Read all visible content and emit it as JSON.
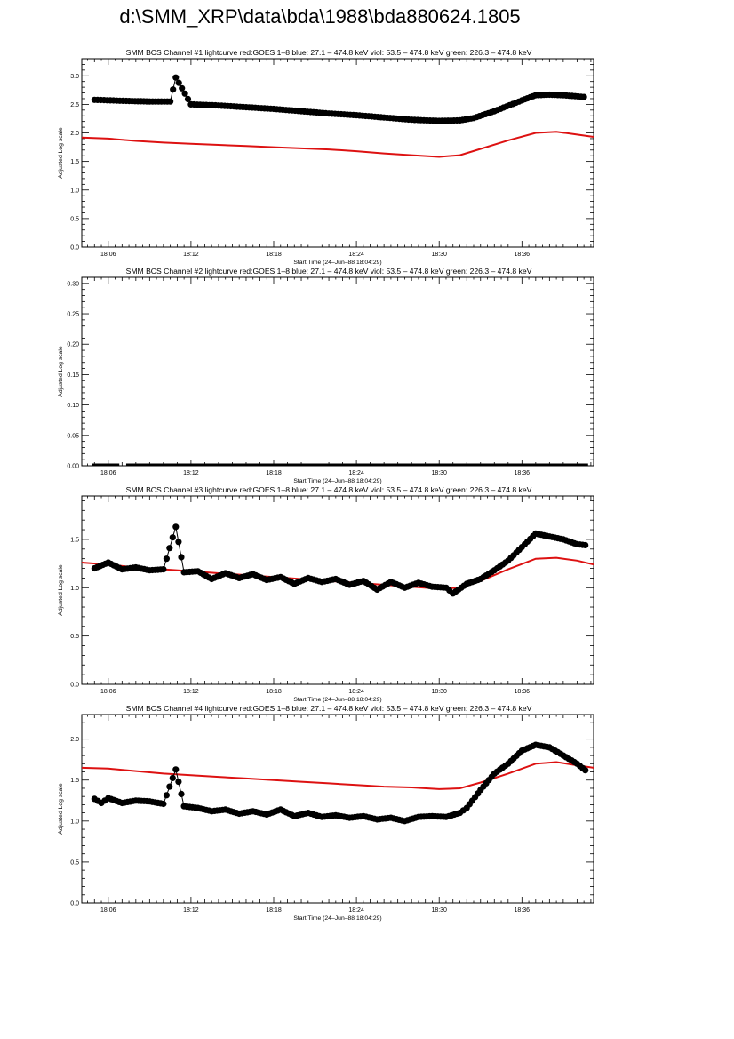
{
  "page_title": "d:\\SMM_XRP\\data\\bda\\1988\\bda880624.1805",
  "colors": {
    "goes": "#dd1111",
    "bcs": "#000000",
    "axis": "#000000"
  },
  "chart_data": [
    {
      "type": "scatter",
      "title": "SMM BCS Channel #1 lightcurve  red:GOES 1–8  blue: 27.1 – 474.8 keV  viol: 53.5 – 474.8 keV  green: 226.3 – 474.8 keV",
      "xlabel": "Start Time (24–Jun–88 18:04:29)",
      "ylabel": "Adjusted Log scale",
      "xlim": [
        18.08,
        55.2
      ],
      "ylim": [
        0,
        3.3
      ],
      "x_ticks": [
        {
          "v": 20,
          "label": "18:06"
        },
        {
          "v": 26,
          "label": "18:12"
        },
        {
          "v": 32,
          "label": "18:18"
        },
        {
          "v": 38,
          "label": "18:24"
        },
        {
          "v": 44,
          "label": "18:30"
        },
        {
          "v": 50,
          "label": "18:36"
        }
      ],
      "y_ticks": [
        {
          "v": 0,
          "label": "0.0"
        },
        {
          "v": 0.5,
          "label": "0.5"
        },
        {
          "v": 1.0,
          "label": "1.0"
        },
        {
          "v": 1.5,
          "label": "1.5"
        },
        {
          "v": 2.0,
          "label": "2.0"
        },
        {
          "v": 2.5,
          "label": "2.5"
        },
        {
          "v": 3.0,
          "label": "3.0"
        }
      ],
      "series": [
        {
          "color": "red",
          "style": "line",
          "x": [
            18.08,
            20,
            22,
            24,
            26,
            28,
            30,
            32,
            34,
            36,
            38,
            40,
            42,
            44,
            45.5,
            47,
            49,
            51,
            52.5,
            54,
            55.2
          ],
          "y": [
            1.92,
            1.9,
            1.86,
            1.83,
            1.81,
            1.79,
            1.77,
            1.75,
            1.73,
            1.71,
            1.68,
            1.64,
            1.61,
            1.58,
            1.61,
            1.72,
            1.87,
            2.0,
            2.02,
            1.97,
            1.93
          ]
        },
        {
          "color": "black",
          "style": "markers",
          "x": [
            19.0,
            21.3,
            23.0,
            24.5,
            24.9,
            26,
            28,
            30,
            32,
            34,
            36,
            38,
            40,
            42,
            44,
            45.5,
            46.5,
            48,
            50,
            51,
            52,
            53,
            54.5
          ],
          "y": [
            2.58,
            2.56,
            2.55,
            2.55,
            2.97,
            2.5,
            2.48,
            2.45,
            2.42,
            2.38,
            2.34,
            2.31,
            2.27,
            2.23,
            2.21,
            2.22,
            2.26,
            2.38,
            2.57,
            2.66,
            2.67,
            2.66,
            2.63
          ],
          "gaps_after_x": [
            19.0
          ]
        }
      ]
    },
    {
      "type": "scatter",
      "title": "SMM BCS Channel #2 lightcurve  red:GOES 1–8  blue: 27.1 – 474.8 keV  viol: 53.5 – 474.8 keV  green: 226.3 – 474.8 keV",
      "xlabel": "Start Time (24–Jun–88 18:04:29)",
      "ylabel": "Adjusted Log scale",
      "xlim": [
        18.08,
        55.2
      ],
      "ylim": [
        0,
        0.31
      ],
      "x_ticks": [
        {
          "v": 20,
          "label": "18:06"
        },
        {
          "v": 26,
          "label": "18:12"
        },
        {
          "v": 32,
          "label": "18:18"
        },
        {
          "v": 38,
          "label": "18:24"
        },
        {
          "v": 44,
          "label": "18:30"
        },
        {
          "v": 50,
          "label": "18:36"
        }
      ],
      "y_ticks": [
        {
          "v": 0,
          "label": "0.00"
        },
        {
          "v": 0.05,
          "label": "0.05"
        },
        {
          "v": 0.1,
          "label": "0.10"
        },
        {
          "v": 0.15,
          "label": "0.15"
        },
        {
          "v": 0.2,
          "label": "0.20"
        },
        {
          "v": 0.25,
          "label": "0.25"
        },
        {
          "v": 0.3,
          "label": "0.30"
        }
      ],
      "series": [
        {
          "color": "black",
          "style": "baseline",
          "segments": [
            [
              18.8,
              20.8
            ],
            [
              21.3,
              54.8
            ]
          ],
          "y": 0
        }
      ]
    },
    {
      "type": "scatter",
      "title": "SMM BCS Channel #3 lightcurve  red:GOES 1–8  blue: 27.1 – 474.8 keV  viol: 53.5 – 474.8 keV  green: 226.3 – 474.8 keV",
      "xlabel": "Start Time (24–Jun–88 18:04:29)",
      "ylabel": "Adjusted Log scale",
      "xlim": [
        18.08,
        55.2
      ],
      "ylim": [
        0,
        1.95
      ],
      "x_ticks": [
        {
          "v": 20,
          "label": "18:06"
        },
        {
          "v": 26,
          "label": "18:12"
        },
        {
          "v": 32,
          "label": "18:18"
        },
        {
          "v": 38,
          "label": "18:24"
        },
        {
          "v": 44,
          "label": "18:30"
        },
        {
          "v": 50,
          "label": "18:36"
        }
      ],
      "y_ticks": [
        {
          "v": 0,
          "label": "0.0"
        },
        {
          "v": 0.5,
          "label": "0.5"
        },
        {
          "v": 1.0,
          "label": "1.0"
        },
        {
          "v": 1.5,
          "label": "1.5"
        }
      ],
      "series": [
        {
          "color": "red",
          "style": "line",
          "x": [
            18.08,
            20,
            22,
            24,
            26,
            28,
            30,
            32,
            34,
            36,
            38,
            40,
            42,
            44,
            45.5,
            47,
            49,
            51,
            52.5,
            54,
            55.2
          ],
          "y": [
            1.26,
            1.24,
            1.21,
            1.19,
            1.17,
            1.15,
            1.13,
            1.11,
            1.09,
            1.07,
            1.05,
            1.03,
            1.01,
            0.99,
            1.0,
            1.07,
            1.19,
            1.3,
            1.31,
            1.28,
            1.24
          ]
        },
        {
          "color": "black",
          "style": "markers",
          "x": [
            19.0,
            20.0,
            21.0,
            22.0,
            23.0,
            24.0,
            24.9,
            25.5,
            26.5,
            27.5,
            28.5,
            29.5,
            30.5,
            31.5,
            32.5,
            33.5,
            34.5,
            35.5,
            36.5,
            37.5,
            38.5,
            39.5,
            40.5,
            41.5,
            42.5,
            43.5,
            44.5,
            45.0,
            46.0,
            47.0,
            48.0,
            49.0,
            50.0,
            51.0,
            52.0,
            53.0,
            54.0,
            54.6
          ],
          "y": [
            1.2,
            1.26,
            1.19,
            1.21,
            1.18,
            1.19,
            1.63,
            1.16,
            1.17,
            1.09,
            1.15,
            1.1,
            1.14,
            1.08,
            1.11,
            1.04,
            1.1,
            1.06,
            1.09,
            1.03,
            1.07,
            0.98,
            1.06,
            1.0,
            1.05,
            1.01,
            1.0,
            0.94,
            1.04,
            1.09,
            1.18,
            1.28,
            1.42,
            1.56,
            1.53,
            1.5,
            1.45,
            1.44
          ]
        }
      ]
    },
    {
      "type": "scatter",
      "title": "SMM BCS Channel #4 lightcurve  red:GOES 1–8  blue: 27.1 – 474.8 keV  viol: 53.5 – 474.8 keV  green: 226.3 – 474.8 keV",
      "xlabel": "Start Time (24–Jun–88 18:04:29)",
      "ylabel": "Adjusted Log scale",
      "xlim": [
        18.08,
        55.2
      ],
      "ylim": [
        0,
        2.3
      ],
      "x_ticks": [
        {
          "v": 20,
          "label": "18:06"
        },
        {
          "v": 26,
          "label": "18:12"
        },
        {
          "v": 32,
          "label": "18:18"
        },
        {
          "v": 38,
          "label": "18:24"
        },
        {
          "v": 44,
          "label": "18:30"
        },
        {
          "v": 50,
          "label": "18:36"
        }
      ],
      "y_ticks": [
        {
          "v": 0,
          "label": "0.0"
        },
        {
          "v": 0.5,
          "label": "0.5"
        },
        {
          "v": 1.0,
          "label": "1.0"
        },
        {
          "v": 1.5,
          "label": "1.5"
        },
        {
          "v": 2.0,
          "label": "2.0"
        }
      ],
      "series": [
        {
          "color": "red",
          "style": "line",
          "x": [
            18.08,
            20,
            22,
            24,
            26,
            28,
            30,
            32,
            34,
            36,
            38,
            40,
            42,
            44,
            45.5,
            47,
            49,
            51,
            52.5,
            54,
            55.2
          ],
          "y": [
            1.65,
            1.64,
            1.61,
            1.58,
            1.56,
            1.54,
            1.52,
            1.5,
            1.48,
            1.46,
            1.44,
            1.42,
            1.41,
            1.39,
            1.4,
            1.47,
            1.58,
            1.7,
            1.72,
            1.68,
            1.65
          ]
        },
        {
          "color": "black",
          "style": "markers",
          "x": [
            19.0,
            19.5,
            20.0,
            21.0,
            22.0,
            23.0,
            24.0,
            24.9,
            25.5,
            26.5,
            27.5,
            28.5,
            29.5,
            30.5,
            31.5,
            32.5,
            33.5,
            34.5,
            35.5,
            36.5,
            37.5,
            38.5,
            39.5,
            40.5,
            41.5,
            42.5,
            43.5,
            44.5,
            45.5,
            46.0,
            47.0,
            48.0,
            49.0,
            50.0,
            51.0,
            52.0,
            53.0,
            54.0,
            54.6
          ],
          "y": [
            1.27,
            1.22,
            1.28,
            1.22,
            1.25,
            1.24,
            1.21,
            1.63,
            1.18,
            1.16,
            1.12,
            1.14,
            1.09,
            1.12,
            1.08,
            1.14,
            1.06,
            1.1,
            1.05,
            1.07,
            1.04,
            1.06,
            1.02,
            1.04,
            1.0,
            1.05,
            1.06,
            1.05,
            1.1,
            1.16,
            1.38,
            1.58,
            1.7,
            1.86,
            1.93,
            1.9,
            1.8,
            1.7,
            1.62
          ]
        }
      ]
    }
  ]
}
